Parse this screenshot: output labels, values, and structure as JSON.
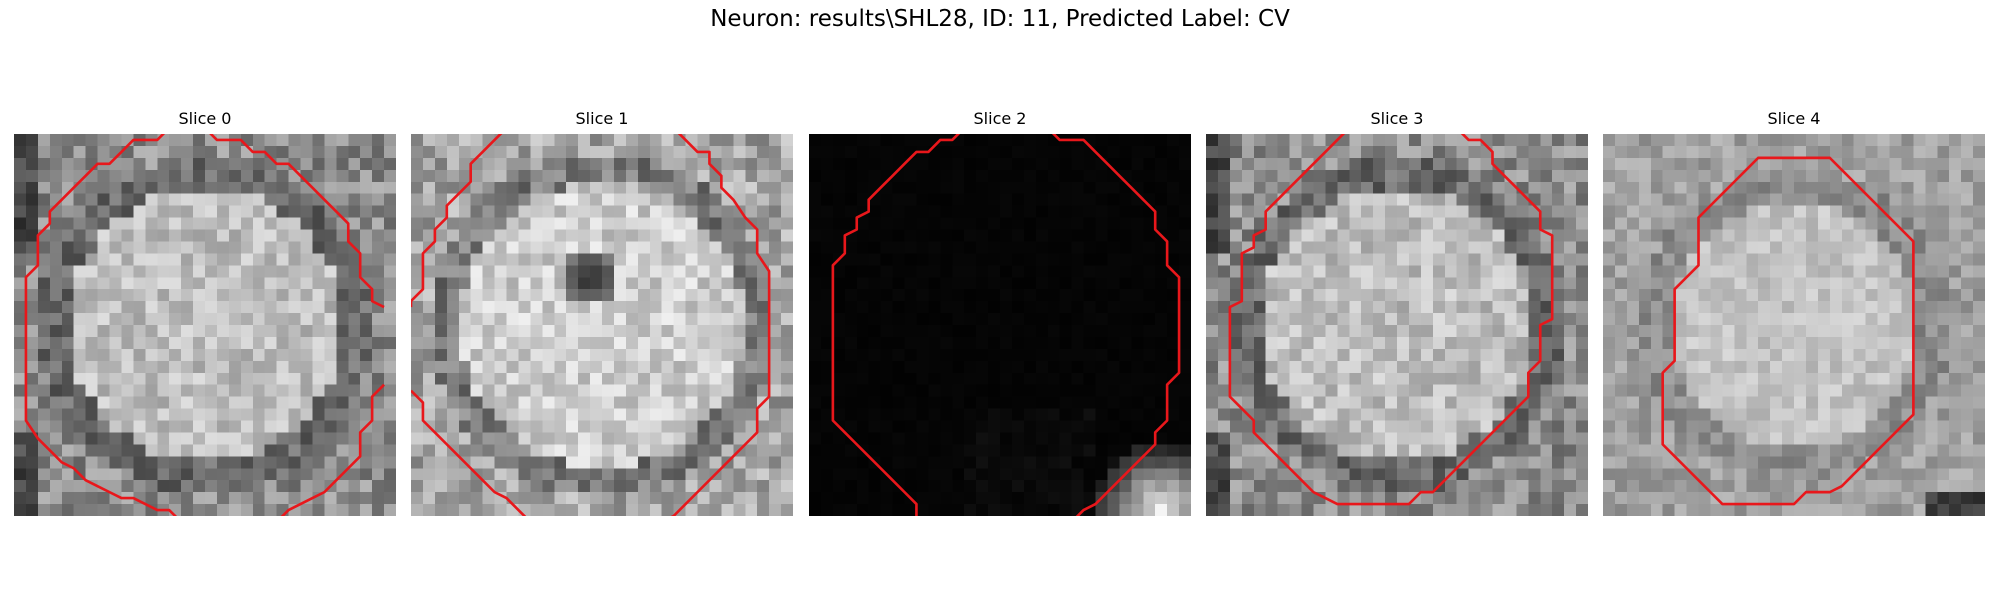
{
  "figure": {
    "title": "Neuron: results\\SHL28, ID: 11, Predicted Label: CV"
  },
  "slices": [
    {
      "label": "Slice 0",
      "style": "cell-gray",
      "outline": [
        [
          13,
          -0.5
        ],
        [
          12,
          0.5
        ],
        [
          10,
          0.5
        ],
        [
          9,
          1.5
        ],
        [
          8,
          2.5
        ],
        [
          7,
          2.5
        ],
        [
          6,
          3.5
        ],
        [
          5,
          4.5
        ],
        [
          4,
          5.5
        ],
        [
          3,
          6.5
        ],
        [
          3,
          7.5
        ],
        [
          2,
          8.5
        ],
        [
          2,
          11
        ],
        [
          1,
          12
        ],
        [
          1,
          19
        ],
        [
          1,
          24
        ],
        [
          2,
          25.5
        ],
        [
          3,
          26.5
        ],
        [
          4,
          27.5
        ],
        [
          5,
          28
        ],
        [
          6,
          29
        ],
        [
          7,
          29.5
        ],
        [
          8,
          30
        ],
        [
          9,
          30.5
        ],
        [
          10,
          30.5
        ],
        [
          11,
          31
        ],
        [
          12,
          31.5
        ],
        [
          13,
          31.5
        ],
        [
          14,
          32.5
        ]
      ],
      "outline2": [
        [
          16,
          -0.5
        ],
        [
          17,
          0.5
        ],
        [
          19,
          0.5
        ],
        [
          20,
          1.5
        ],
        [
          21,
          1.5
        ],
        [
          22,
          2.5
        ],
        [
          23,
          2.5
        ],
        [
          24,
          3.5
        ],
        [
          25,
          4.5
        ],
        [
          26,
          5.5
        ],
        [
          27,
          6.5
        ],
        [
          28,
          7.5
        ],
        [
          28,
          9
        ],
        [
          29,
          10
        ],
        [
          29,
          12
        ],
        [
          30,
          13
        ],
        [
          30,
          14
        ],
        [
          31,
          14.5
        ]
      ],
      "outline3": [
        [
          31,
          21
        ],
        [
          30,
          22
        ],
        [
          30,
          24
        ],
        [
          29,
          25
        ],
        [
          29,
          27
        ],
        [
          28,
          28
        ],
        [
          27,
          29
        ],
        [
          26,
          30
        ],
        [
          25,
          30.5
        ],
        [
          24,
          31
        ],
        [
          23,
          31.5
        ],
        [
          22,
          32.5
        ]
      ]
    },
    {
      "label": "Slice 1",
      "style": "cell-bright",
      "outline": [
        [
          8,
          -0.5
        ],
        [
          7,
          0.5
        ],
        [
          6,
          1.5
        ],
        [
          5,
          2.5
        ],
        [
          5,
          4
        ],
        [
          4,
          5
        ],
        [
          3,
          6
        ],
        [
          3,
          7
        ],
        [
          2,
          8
        ],
        [
          2,
          9
        ],
        [
          1,
          10
        ],
        [
          1,
          13
        ],
        [
          0,
          14
        ],
        [
          0,
          14.5
        ]
      ],
      "outline2": [
        [
          22,
          -0.5
        ],
        [
          23,
          0.5
        ],
        [
          24,
          1.5
        ],
        [
          25,
          1.5
        ],
        [
          25,
          2.5
        ],
        [
          26,
          3.5
        ],
        [
          26,
          4.5
        ],
        [
          27,
          5.5
        ],
        [
          28,
          7
        ],
        [
          29,
          8
        ],
        [
          29,
          10
        ],
        [
          30,
          11.5
        ],
        [
          30,
          17
        ],
        [
          30,
          20
        ],
        [
          30,
          22
        ],
        [
          29,
          23
        ],
        [
          29,
          25
        ],
        [
          28,
          26
        ],
        [
          27,
          27
        ],
        [
          26,
          28
        ],
        [
          25,
          29
        ],
        [
          24,
          30
        ],
        [
          23,
          31
        ],
        [
          22,
          32
        ],
        [
          21,
          32.5
        ]
      ],
      "outline3": [
        [
          0,
          21.5
        ],
        [
          1,
          22.5
        ],
        [
          1,
          24
        ],
        [
          2,
          25
        ],
        [
          3,
          26
        ],
        [
          4,
          27
        ],
        [
          5,
          28
        ],
        [
          6,
          29
        ],
        [
          7,
          30
        ],
        [
          8,
          30.5
        ],
        [
          9,
          31.5
        ],
        [
          10,
          32.5
        ]
      ]
    },
    {
      "label": "Slice 2",
      "style": "dark",
      "outline": [
        [
          13,
          -0.5
        ],
        [
          12,
          0.5
        ],
        [
          11,
          0.5
        ],
        [
          10,
          1.5
        ],
        [
          9,
          1.5
        ],
        [
          8,
          2.5
        ],
        [
          7,
          3.5
        ],
        [
          6,
          4.5
        ],
        [
          5,
          5.5
        ],
        [
          5,
          6.5
        ],
        [
          4,
          7
        ],
        [
          4,
          8
        ],
        [
          3,
          8.5
        ],
        [
          3,
          10
        ],
        [
          2,
          11
        ],
        [
          2,
          12
        ],
        [
          2,
          24
        ],
        [
          3,
          25
        ],
        [
          4,
          26
        ],
        [
          5,
          27
        ],
        [
          6,
          28
        ],
        [
          7,
          29
        ],
        [
          8,
          30
        ],
        [
          9,
          31
        ],
        [
          9,
          32.5
        ]
      ],
      "outline2": [
        [
          20,
          -0.5
        ],
        [
          21,
          0.5
        ],
        [
          23,
          0.5
        ],
        [
          24,
          1.5
        ],
        [
          25,
          2.5
        ],
        [
          26,
          3.5
        ],
        [
          27,
          4.5
        ],
        [
          28,
          5.5
        ],
        [
          29,
          6.5
        ],
        [
          29,
          8
        ],
        [
          30,
          9
        ],
        [
          30,
          11
        ],
        [
          31,
          12
        ],
        [
          31,
          17
        ],
        [
          31,
          20
        ],
        [
          30,
          21
        ],
        [
          30,
          24
        ],
        [
          29,
          25
        ],
        [
          29,
          26
        ],
        [
          28,
          27
        ],
        [
          27,
          28
        ],
        [
          26,
          29
        ],
        [
          25,
          30
        ],
        [
          24,
          31
        ],
        [
          23,
          31.5
        ],
        [
          22,
          32.5
        ]
      ],
      "outline3": []
    },
    {
      "label": "Slice 3",
      "style": "cell-gray",
      "outline": [
        [
          12,
          -0.5
        ],
        [
          11,
          0.5
        ],
        [
          10,
          1.5
        ],
        [
          9,
          2.5
        ],
        [
          8,
          3.5
        ],
        [
          7,
          4.5
        ],
        [
          6,
          5.5
        ],
        [
          5,
          6.5
        ],
        [
          5,
          8
        ],
        [
          4,
          8.5
        ],
        [
          4,
          9.5
        ],
        [
          3,
          10
        ],
        [
          3,
          14
        ],
        [
          2,
          14.5
        ],
        [
          2,
          20
        ],
        [
          2,
          22
        ],
        [
          3,
          23
        ],
        [
          4,
          24
        ],
        [
          4,
          25
        ],
        [
          5,
          26
        ],
        [
          6,
          27
        ],
        [
          7,
          28
        ],
        [
          8,
          29
        ],
        [
          9,
          30
        ],
        [
          10,
          30.5
        ],
        [
          11,
          31
        ],
        [
          12,
          31
        ],
        [
          17,
          31
        ],
        [
          18,
          30
        ],
        [
          19,
          30
        ],
        [
          20,
          29
        ],
        [
          21,
          28
        ],
        [
          22,
          27
        ],
        [
          23,
          26
        ],
        [
          24,
          25
        ],
        [
          25,
          24
        ],
        [
          26,
          23
        ],
        [
          27,
          22
        ],
        [
          27,
          20
        ],
        [
          28,
          19
        ],
        [
          28,
          16
        ],
        [
          29,
          15.5
        ],
        [
          29,
          13
        ]
      ],
      "outline2": [
        [
          21,
          -0.5
        ],
        [
          22,
          0.5
        ],
        [
          23,
          0.5
        ],
        [
          24,
          1.5
        ],
        [
          24,
          2.5
        ],
        [
          25,
          3.5
        ],
        [
          26,
          4.5
        ],
        [
          27,
          5.5
        ],
        [
          28,
          6.5
        ],
        [
          28,
          8
        ],
        [
          29,
          8.5
        ],
        [
          29,
          13
        ]
      ],
      "outline3": []
    },
    {
      "label": "Slice 4",
      "style": "cell-flat",
      "outline": [
        [
          9,
          6
        ],
        [
          10,
          5
        ],
        [
          11,
          4
        ],
        [
          12,
          3
        ],
        [
          13,
          2
        ],
        [
          19,
          2
        ],
        [
          20,
          3
        ],
        [
          21,
          4
        ],
        [
          22,
          5
        ],
        [
          23,
          6
        ],
        [
          24,
          7
        ],
        [
          25,
          8
        ],
        [
          26,
          9
        ],
        [
          26,
          15
        ],
        [
          26,
          20
        ],
        [
          26,
          23.5
        ],
        [
          25,
          24.5
        ],
        [
          24,
          25.5
        ],
        [
          23,
          26.5
        ],
        [
          22,
          27.5
        ],
        [
          21,
          28.5
        ],
        [
          20,
          29.5
        ],
        [
          19,
          30
        ],
        [
          17,
          30
        ],
        [
          16,
          31
        ],
        [
          13,
          31
        ],
        [
          10,
          31
        ],
        [
          9,
          30
        ],
        [
          8,
          29
        ],
        [
          7,
          28
        ],
        [
          6,
          27
        ],
        [
          5,
          26
        ],
        [
          5,
          20
        ],
        [
          6,
          19
        ],
        [
          6,
          13
        ],
        [
          7,
          12
        ],
        [
          8,
          11
        ],
        [
          8,
          10.5
        ],
        [
          8,
          7
        ],
        [
          9,
          6
        ]
      ],
      "outline2": [],
      "outline3": []
    }
  ]
}
